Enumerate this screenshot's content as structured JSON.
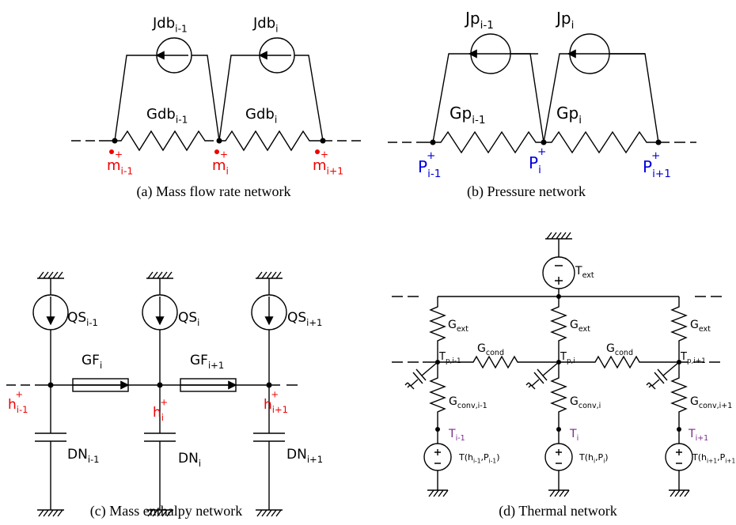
{
  "panels": [
    {
      "caption": "(a) Mass flow rate network",
      "labels": [
        {
          "parts": [
            "Jdb",
            "i-1"
          ]
        },
        {
          "parts": [
            "Jdb",
            "i"
          ]
        },
        {
          "parts": [
            "Gdb",
            "i-1"
          ]
        },
        {
          "parts": [
            "Gdb",
            "i"
          ]
        },
        {
          "parts": [
            "m",
            "i-1"
          ],
          "sup": "+"
        },
        {
          "parts": [
            "m",
            "i"
          ],
          "sup": "+"
        },
        {
          "parts": [
            "m",
            "i+1"
          ],
          "sup": "+"
        }
      ]
    },
    {
      "caption": "(b) Pressure network",
      "labels": [
        {
          "parts": [
            "Jp",
            "i-1"
          ]
        },
        {
          "parts": [
            "Jp",
            "i"
          ]
        },
        {
          "parts": [
            "Gp",
            "i-1"
          ]
        },
        {
          "parts": [
            "Gp",
            "i"
          ]
        },
        {
          "parts": [
            "P",
            "i-1"
          ],
          "sup": "+"
        },
        {
          "parts": [
            "P",
            "i"
          ],
          "sup": "+"
        },
        {
          "parts": [
            "P",
            "i+1"
          ],
          "sup": "+"
        }
      ]
    },
    {
      "caption": "(c) Mass enthalpy network",
      "labels": [
        {
          "parts": [
            "QS",
            "i-1"
          ]
        },
        {
          "parts": [
            "QS",
            "i"
          ]
        },
        {
          "parts": [
            "QS",
            "i+1"
          ]
        },
        {
          "parts": [
            "GF",
            "i"
          ]
        },
        {
          "parts": [
            "GF",
            "i+1"
          ]
        },
        {
          "parts": [
            "h",
            "i-1"
          ],
          "sup": "+"
        },
        {
          "parts": [
            "h",
            "i"
          ],
          "sup": "+"
        },
        {
          "parts": [
            "h",
            "i+1"
          ],
          "sup": "+"
        },
        {
          "parts": [
            "DN",
            "i-1"
          ]
        },
        {
          "parts": [
            "DN",
            "i"
          ]
        },
        {
          "parts": [
            "DN",
            "i+1"
          ]
        }
      ]
    },
    {
      "caption": "(d) Thermal network",
      "labels": [
        {
          "parts": [
            "T",
            "ext"
          ]
        },
        {
          "parts": [
            "G",
            "ext"
          ]
        },
        {
          "parts": [
            "G",
            "ext"
          ]
        },
        {
          "parts": [
            "G",
            "ext"
          ]
        },
        {
          "parts": [
            "G",
            "cond"
          ]
        },
        {
          "parts": [
            "G",
            "cond"
          ]
        },
        {
          "parts": [
            "T",
            "p,i-1"
          ]
        },
        {
          "parts": [
            "T",
            "p,i"
          ]
        },
        {
          "parts": [
            "T",
            "p,i+1"
          ]
        },
        {
          "parts": [
            "G",
            "conv,i-1"
          ]
        },
        {
          "parts": [
            "G",
            "conv,i"
          ]
        },
        {
          "parts": [
            "G",
            "conv,i+1"
          ]
        },
        {
          "parts": [
            "T",
            "i-1"
          ]
        },
        {
          "parts": [
            "T",
            "i"
          ]
        },
        {
          "parts": [
            "T",
            "i+1"
          ]
        },
        {
          "parts": [
            "T(h",
            "i-1",
            ",P",
            "i-1",
            ")"
          ]
        },
        {
          "parts": [
            "T(h",
            "i",
            ",P",
            "i",
            ")"
          ]
        },
        {
          "parts": [
            "T(h",
            "i+1",
            ",P",
            "i+1",
            ")"
          ]
        }
      ]
    }
  ]
}
